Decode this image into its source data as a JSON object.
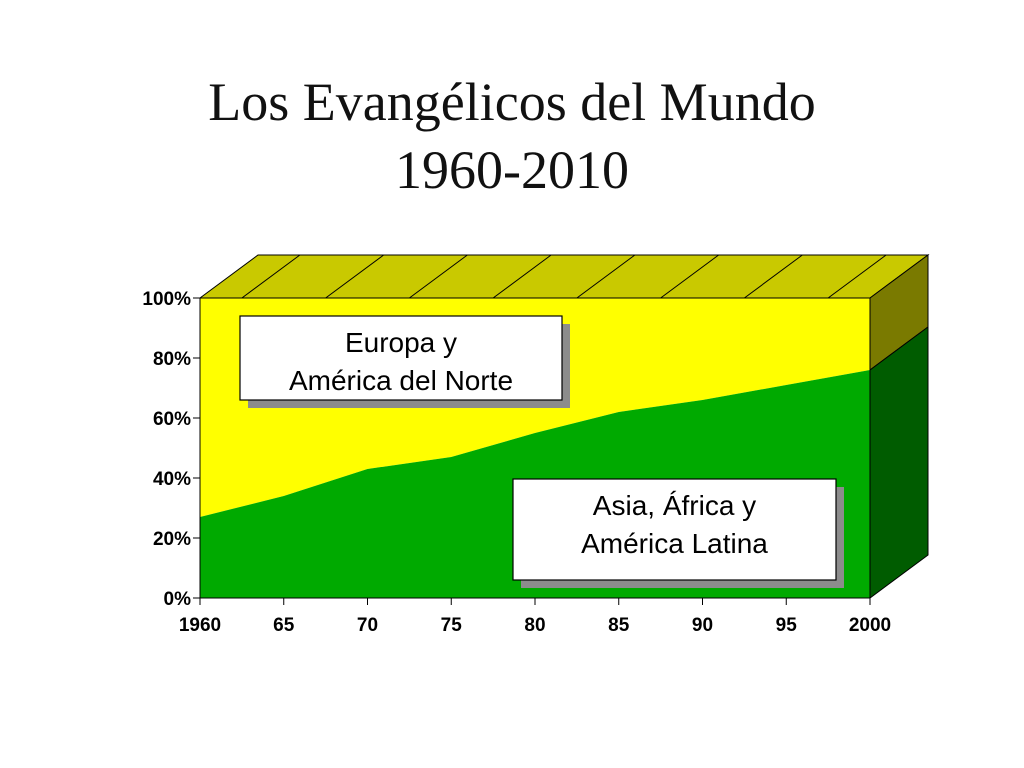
{
  "title_line1": "Los Evangélicos del Mundo",
  "title_line2": "1960-2010",
  "chart_data": {
    "type": "area",
    "stacked": true,
    "percent": true,
    "x": [
      "1960",
      "65",
      "70",
      "75",
      "80",
      "85",
      "90",
      "95",
      "2000"
    ],
    "yticks": [
      "0%",
      "20%",
      "40%",
      "60%",
      "80%",
      "100%"
    ],
    "ylim": [
      0,
      100
    ],
    "series": [
      {
        "name": "Asia, África y América Latina",
        "values": [
          27,
          34,
          43,
          47,
          55,
          62,
          66,
          71,
          76
        ],
        "color": "#00aa00",
        "label_lines": [
          "Asia, África y",
          "América Latina"
        ]
      },
      {
        "name": "Europa y América del Norte",
        "values": [
          73,
          66,
          57,
          53,
          45,
          38,
          34,
          29,
          24
        ],
        "color": "#ffff00",
        "label_lines": [
          "Europa y",
          "América del Norte"
        ]
      }
    ],
    "style": "3d",
    "grid": false,
    "legend": "in-chart text boxes"
  }
}
